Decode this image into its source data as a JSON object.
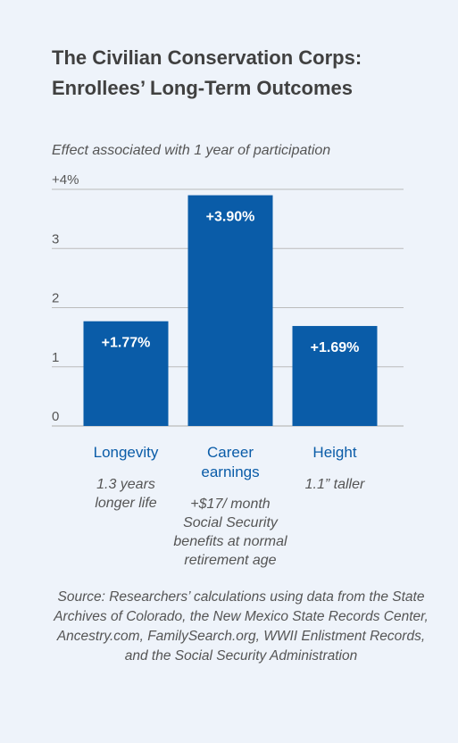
{
  "title": [
    "The Civilian Conservation Corps:",
    "Enrollees’ Long-Term Outcomes"
  ],
  "subtitle": "Effect associated with 1 year of participation",
  "colors": {
    "bar": "#0a5ca8",
    "category": "#0a5ca8",
    "background": "#eef3fa",
    "gridline": "#bbbbbb"
  },
  "chart_data": {
    "type": "bar",
    "title": "The Civilian Conservation Corps: Enrollees’ Long-Term Outcomes",
    "subtitle": "Effect associated with 1 year of participation",
    "ylim": [
      0,
      4
    ],
    "yticks": [
      0,
      1,
      2,
      3,
      4
    ],
    "ytick_labels": [
      "0",
      "1",
      "2",
      "3",
      "+4%"
    ],
    "grid": true,
    "categories": [
      {
        "name": [
          "Longevity"
        ],
        "value": 1.77,
        "label": "+1.77%",
        "note": [
          "1.3 years",
          "longer life"
        ]
      },
      {
        "name": [
          "Career",
          "earnings"
        ],
        "value": 3.9,
        "label": "+3.90%",
        "note": [
          "+$17/ month",
          "Social Security",
          "benefits at normal",
          "retirement age"
        ]
      },
      {
        "name": [
          "Height"
        ],
        "value": 1.69,
        "label": "+1.69%",
        "note": [
          "1.1” taller"
        ]
      }
    ]
  },
  "source": "Source: Researchers’ calculations using data from the State Archives of Colorado, the New Mexico State Records Center, Ancestry.com, FamilySearch.org, WWII Enlistment Records, and the Social Security Administration"
}
